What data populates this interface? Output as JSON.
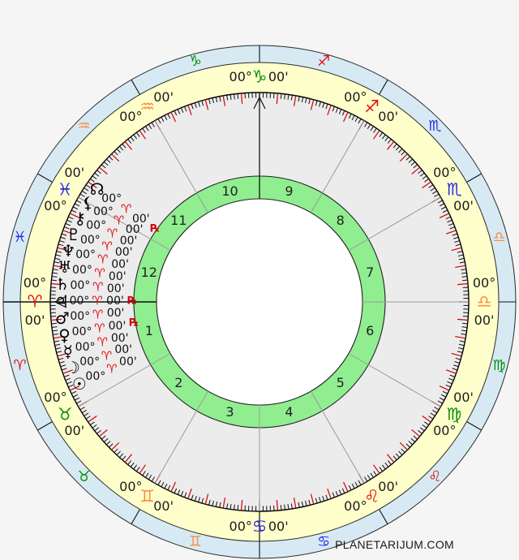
{
  "watermark": "PLANETARIJUM.COM",
  "colors": {
    "background": "#f5f5f5",
    "zodiac_ring": "#d7eaf4",
    "degree_ring": "#ffffcb",
    "houses_area": "#ececec",
    "house_number_ring": "#90ee90",
    "center": "#ffffff",
    "ring_outline": "#2b2b2b",
    "tick_minor": "#111111",
    "tick_major": "#d40000",
    "cusp_line": "#9a9a9a",
    "axis_line": "#111111",
    "label_text": "#1a1a1a",
    "retrograde": "#cc0000",
    "planet_sign": "#e51010",
    "elements": {
      "fire": "#e51010",
      "earth": "#0a8f0a",
      "air": "#ff8a3c",
      "water": "#2626e8"
    }
  },
  "chart": {
    "cusp_degree_label": "00°",
    "cusp_minute_label": "00'",
    "retrograde_label": "℞",
    "signs": [
      {
        "name": "aries",
        "glyph": "♈",
        "element": "fire",
        "cusp_deg": 180
      },
      {
        "name": "taurus",
        "glyph": "♉",
        "element": "earth",
        "cusp_deg": 210
      },
      {
        "name": "gemini",
        "glyph": "♊",
        "element": "air",
        "cusp_deg": 240
      },
      {
        "name": "cancer",
        "glyph": "♋",
        "element": "water",
        "cusp_deg": 270
      },
      {
        "name": "leo",
        "glyph": "♌",
        "element": "fire",
        "cusp_deg": 300
      },
      {
        "name": "virgo",
        "glyph": "♍",
        "element": "earth",
        "cusp_deg": 330
      },
      {
        "name": "libra",
        "glyph": "♎",
        "element": "air",
        "cusp_deg": 0
      },
      {
        "name": "scorpio",
        "glyph": "♏",
        "element": "water",
        "cusp_deg": 30
      },
      {
        "name": "sagittarius",
        "glyph": "♐",
        "element": "fire",
        "cusp_deg": 60
      },
      {
        "name": "capricorn",
        "glyph": "♑",
        "element": "earth",
        "cusp_deg": 90
      },
      {
        "name": "aquarius",
        "glyph": "♒",
        "element": "air",
        "cusp_deg": 120
      },
      {
        "name": "pisces",
        "glyph": "♓",
        "element": "water",
        "cusp_deg": 150
      }
    ],
    "houses": [
      "1",
      "2",
      "3",
      "4",
      "5",
      "6",
      "7",
      "8",
      "9",
      "10",
      "11",
      "12"
    ],
    "planets": [
      {
        "name": "north-node",
        "glyph": "☊",
        "degree": "00°",
        "sign": "♈",
        "minute": "00'",
        "retrograde": true
      },
      {
        "name": "lilith",
        "glyph": "⚸",
        "degree": "00°",
        "sign": "♈",
        "minute": "00'",
        "retrograde": false
      },
      {
        "name": "chiron",
        "glyph": "⚷",
        "degree": "00°",
        "sign": "♈",
        "minute": "00'",
        "retrograde": false
      },
      {
        "name": "pluto",
        "glyph": "♇",
        "degree": "00°",
        "sign": "♈",
        "minute": "00'",
        "retrograde": false
      },
      {
        "name": "neptune",
        "glyph": "♆",
        "degree": "00°",
        "sign": "♈",
        "minute": "00'",
        "retrograde": false
      },
      {
        "name": "uranus",
        "glyph": "♅",
        "degree": "00°",
        "sign": "♈",
        "minute": "00'",
        "retrograde": false
      },
      {
        "name": "saturn",
        "glyph": "♄",
        "degree": "00°",
        "sign": "♈",
        "minute": "00'",
        "retrograde": false
      },
      {
        "name": "jupiter",
        "glyph": "♃",
        "degree": "00°",
        "sign": "♈",
        "minute": "00'",
        "retrograde": true
      },
      {
        "name": "mars",
        "glyph": "♂",
        "degree": "00°",
        "sign": "♈",
        "minute": "00'",
        "retrograde": false
      },
      {
        "name": "venus",
        "glyph": "♀",
        "degree": "00°",
        "sign": "♈",
        "minute": "00'",
        "retrograde": true
      },
      {
        "name": "mercury",
        "glyph": "☿",
        "degree": "00°",
        "sign": "♈",
        "minute": "00'",
        "retrograde": false
      },
      {
        "name": "moon",
        "glyph": "☽",
        "degree": "00°",
        "sign": "♈",
        "minute": "00'",
        "retrograde": false
      },
      {
        "name": "sun",
        "glyph": "☉",
        "degree": "00°",
        "sign": "♈",
        "minute": "00'",
        "retrograde": false
      }
    ]
  }
}
